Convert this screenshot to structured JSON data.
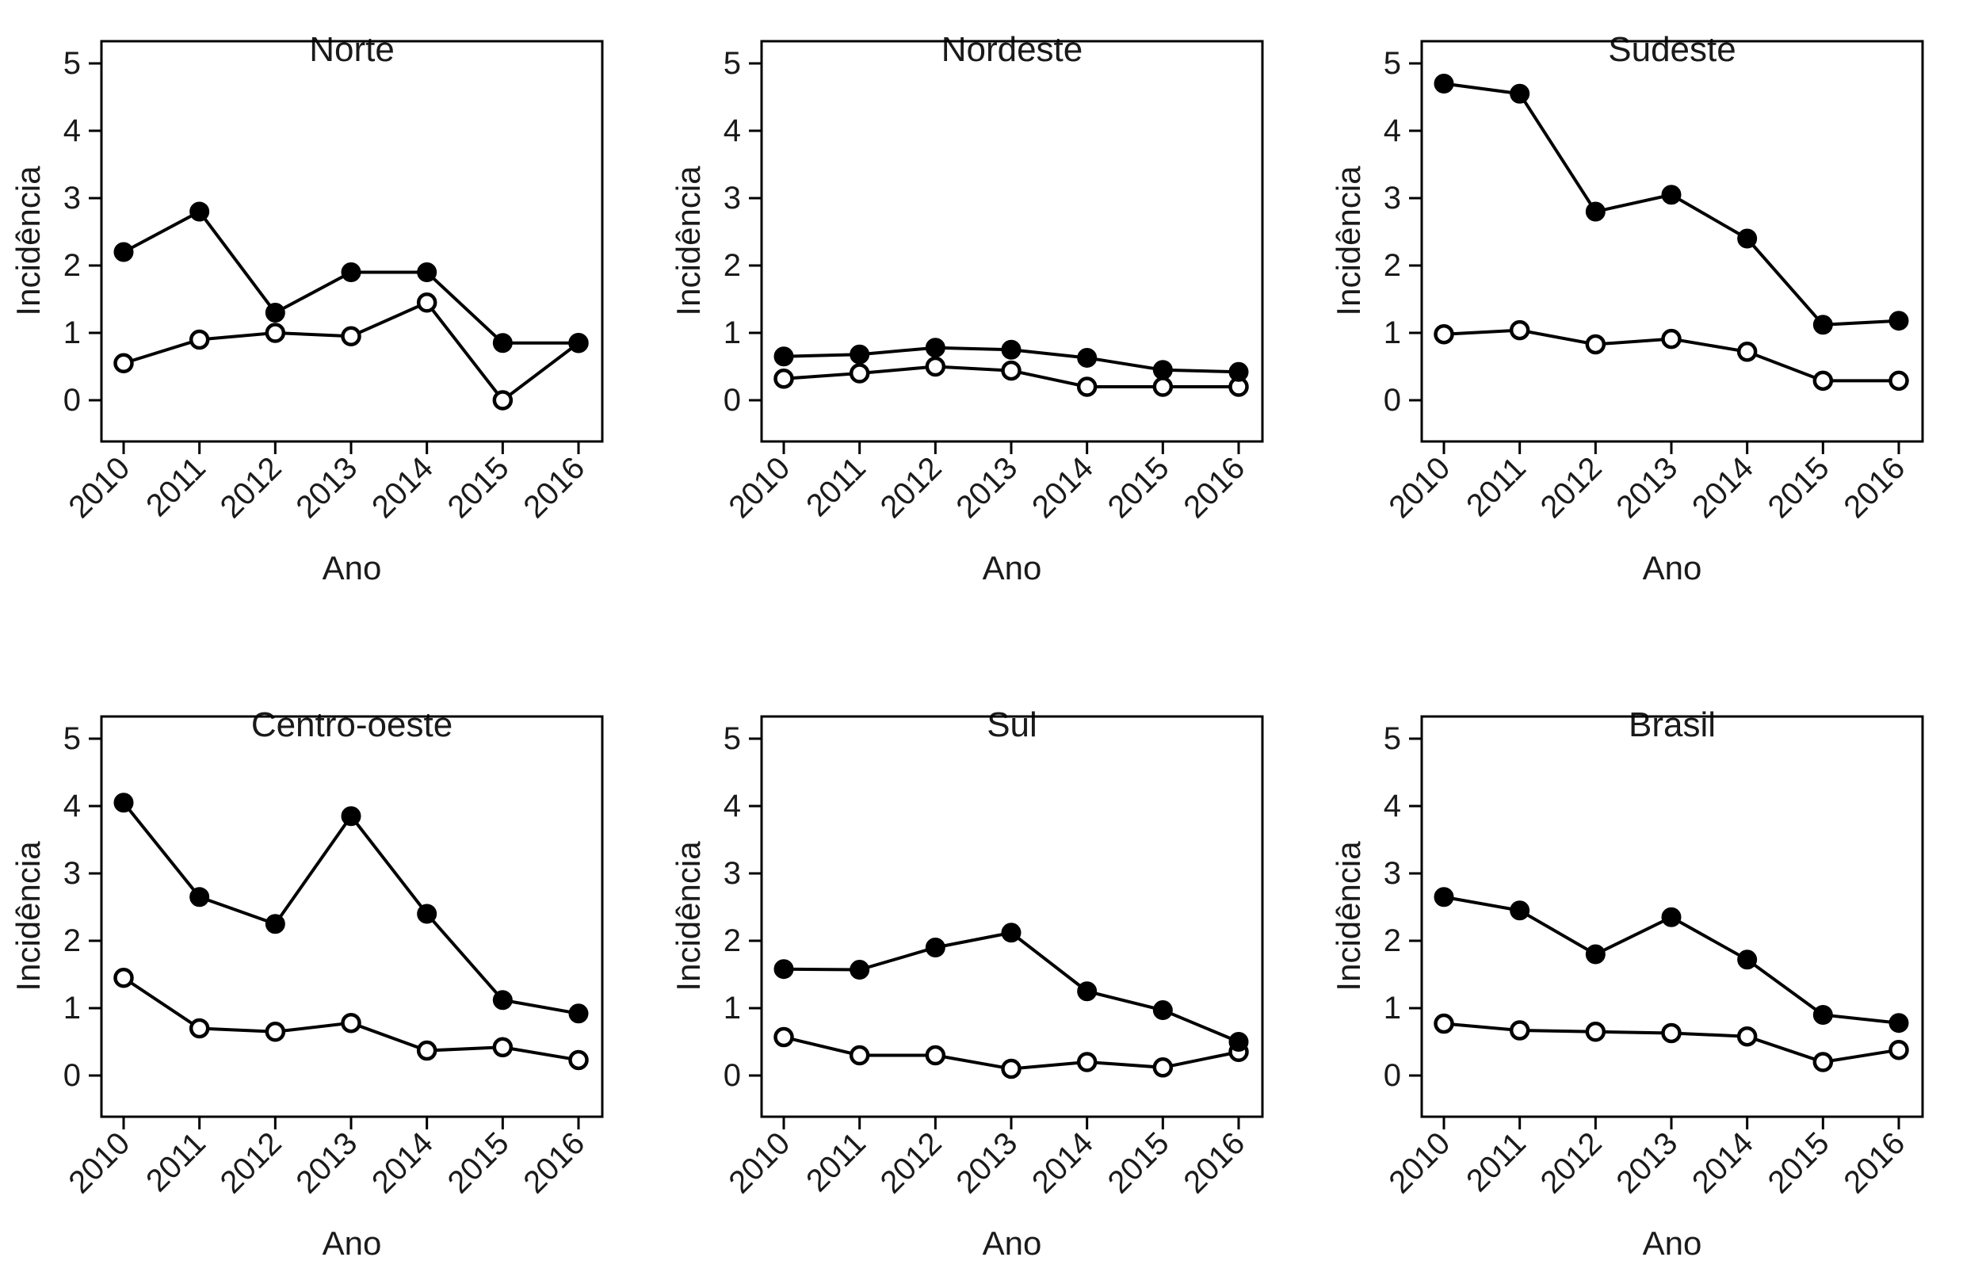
{
  "figure": {
    "background": "#ffffff",
    "ink_color": "#000000",
    "marker_styles": [
      "filled-circle",
      "open-circle"
    ]
  },
  "chart_data": [
    {
      "type": "line",
      "title": "Norte",
      "xlabel": "Ano",
      "ylabel": "Incidência",
      "x_labels": [
        "2010",
        "2011",
        "2012",
        "2013",
        "2014",
        "2015",
        "2016"
      ],
      "ylim": [
        0,
        5
      ],
      "y_ticks": [
        0,
        1,
        2,
        3,
        4,
        5
      ],
      "grid": false,
      "legend": "none",
      "series": [
        {
          "name": "series-filled",
          "marker": "filled-circle",
          "values": [
            2.2,
            2.8,
            1.3,
            1.9,
            1.9,
            0.85,
            0.85
          ]
        },
        {
          "name": "series-open",
          "marker": "open-circle",
          "values": [
            0.55,
            0.9,
            1.0,
            0.95,
            1.45,
            0.0,
            0.85
          ]
        }
      ]
    },
    {
      "type": "line",
      "title": "Nordeste",
      "xlabel": "Ano",
      "ylabel": "Incidência",
      "x_labels": [
        "2010",
        "2011",
        "2012",
        "2013",
        "2014",
        "2015",
        "2016"
      ],
      "ylim": [
        0,
        5
      ],
      "y_ticks": [
        0,
        1,
        2,
        3,
        4,
        5
      ],
      "grid": false,
      "legend": "none",
      "series": [
        {
          "name": "series-filled",
          "marker": "filled-circle",
          "values": [
            0.65,
            0.68,
            0.78,
            0.75,
            0.63,
            0.45,
            0.42
          ]
        },
        {
          "name": "series-open",
          "marker": "open-circle",
          "values": [
            0.32,
            0.4,
            0.5,
            0.44,
            0.2,
            0.2,
            0.2
          ]
        }
      ]
    },
    {
      "type": "line",
      "title": "Sudeste",
      "xlabel": "Ano",
      "ylabel": "Incidência",
      "x_labels": [
        "2010",
        "2011",
        "2012",
        "2013",
        "2014",
        "2015",
        "2016"
      ],
      "ylim": [
        0,
        5
      ],
      "y_ticks": [
        0,
        1,
        2,
        3,
        4,
        5
      ],
      "grid": false,
      "legend": "none",
      "series": [
        {
          "name": "series-filled",
          "marker": "filled-circle",
          "values": [
            4.7,
            4.55,
            2.8,
            3.05,
            2.4,
            1.12,
            1.18
          ]
        },
        {
          "name": "series-open",
          "marker": "open-circle",
          "values": [
            0.98,
            1.04,
            0.83,
            0.91,
            0.72,
            0.29,
            0.29
          ]
        }
      ]
    },
    {
      "type": "line",
      "title": "Centro-oeste",
      "xlabel": "Ano",
      "ylabel": "Incidência",
      "x_labels": [
        "2010",
        "2011",
        "2012",
        "2013",
        "2014",
        "2015",
        "2016"
      ],
      "ylim": [
        0,
        5
      ],
      "y_ticks": [
        0,
        1,
        2,
        3,
        4,
        5
      ],
      "grid": false,
      "legend": "none",
      "series": [
        {
          "name": "series-filled",
          "marker": "filled-circle",
          "values": [
            4.05,
            2.65,
            2.25,
            3.85,
            2.4,
            1.12,
            0.92
          ]
        },
        {
          "name": "series-open",
          "marker": "open-circle",
          "values": [
            1.45,
            0.7,
            0.65,
            0.78,
            0.37,
            0.42,
            0.23
          ]
        }
      ]
    },
    {
      "type": "line",
      "title": "Sul",
      "xlabel": "Ano",
      "ylabel": "Incidência",
      "x_labels": [
        "2010",
        "2011",
        "2012",
        "2013",
        "2014",
        "2015",
        "2016"
      ],
      "ylim": [
        0,
        5
      ],
      "y_ticks": [
        0,
        1,
        2,
        3,
        4,
        5
      ],
      "grid": false,
      "legend": "none",
      "series": [
        {
          "name": "series-filled",
          "marker": "filled-circle",
          "values": [
            1.58,
            1.57,
            1.9,
            2.12,
            1.25,
            0.97,
            0.5
          ]
        },
        {
          "name": "series-open",
          "marker": "open-circle",
          "values": [
            0.57,
            0.3,
            0.3,
            0.1,
            0.2,
            0.12,
            0.35
          ]
        }
      ]
    },
    {
      "type": "line",
      "title": "Brasil",
      "xlabel": "Ano",
      "ylabel": "Incidência",
      "x_labels": [
        "2010",
        "2011",
        "2012",
        "2013",
        "2014",
        "2015",
        "2016"
      ],
      "ylim": [
        0,
        5
      ],
      "y_ticks": [
        0,
        1,
        2,
        3,
        4,
        5
      ],
      "grid": false,
      "legend": "none",
      "series": [
        {
          "name": "series-filled",
          "marker": "filled-circle",
          "values": [
            2.65,
            2.45,
            1.8,
            2.35,
            1.72,
            0.9,
            0.78
          ]
        },
        {
          "name": "series-open",
          "marker": "open-circle",
          "values": [
            0.77,
            0.67,
            0.65,
            0.63,
            0.58,
            0.2,
            0.38
          ]
        }
      ]
    }
  ]
}
